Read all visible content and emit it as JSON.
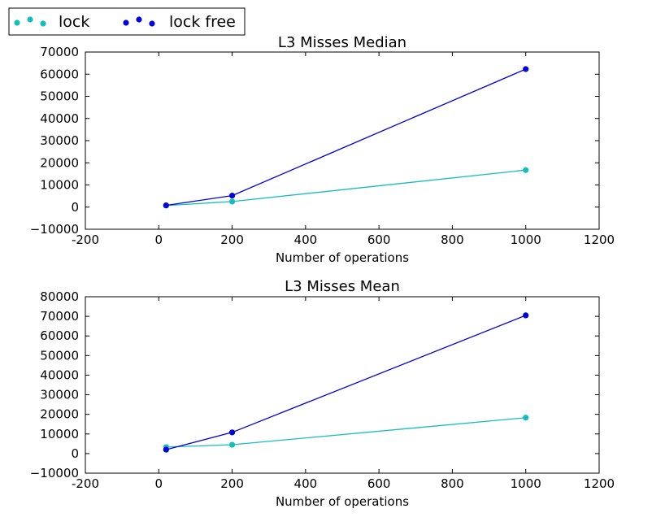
{
  "legend": {
    "placement": "top-left, outside axes",
    "entries": [
      {
        "label": "lock",
        "color": "#17bdbd"
      },
      {
        "label": "lock free",
        "color": "#0000dd"
      }
    ]
  },
  "chart_data": [
    {
      "type": "line",
      "title": "L3 Misses Median",
      "xlabel": "Number of operations",
      "ylabel": "",
      "xlim": [
        -200,
        1200
      ],
      "ylim": [
        -10000,
        70000
      ],
      "xticks": [
        -200,
        0,
        200,
        400,
        600,
        800,
        1000,
        1200
      ],
      "yticks": [
        -10000,
        0,
        10000,
        20000,
        30000,
        40000,
        50000,
        60000,
        70000
      ],
      "grid": false,
      "x": [
        20,
        200,
        1000
      ],
      "series": [
        {
          "name": "lock",
          "color": "#17bdbd",
          "values": [
            700,
            2500,
            16700
          ]
        },
        {
          "name": "lock free",
          "color": "#0000dd",
          "values": [
            800,
            5200,
            62300
          ]
        }
      ]
    },
    {
      "type": "line",
      "title": "L3 Misses Mean",
      "xlabel": "Number of operations",
      "ylabel": "",
      "xlim": [
        -200,
        1200
      ],
      "ylim": [
        -10000,
        80000
      ],
      "xticks": [
        -200,
        0,
        200,
        400,
        600,
        800,
        1000,
        1200
      ],
      "yticks": [
        -10000,
        0,
        10000,
        20000,
        30000,
        40000,
        50000,
        60000,
        70000,
        80000
      ],
      "grid": false,
      "x": [
        20,
        200,
        1000
      ],
      "series": [
        {
          "name": "lock",
          "color": "#17bdbd",
          "values": [
            3300,
            4500,
            18300
          ]
        },
        {
          "name": "lock free",
          "color": "#0000dd",
          "values": [
            2000,
            10800,
            70500
          ]
        }
      ]
    }
  ]
}
